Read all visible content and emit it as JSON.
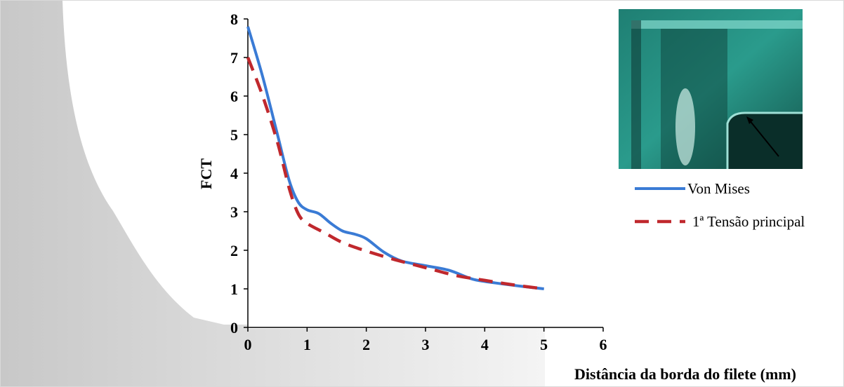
{
  "chart_data": {
    "type": "line",
    "xlabel": "Distância da borda do filete (mm)",
    "ylabel": "FCT",
    "xlim": [
      0,
      6
    ],
    "ylim": [
      0,
      8
    ],
    "x_ticks": [
      "0",
      "1",
      "2",
      "3",
      "4",
      "5",
      "6"
    ],
    "y_ticks": [
      "0",
      "1",
      "2",
      "3",
      "4",
      "5",
      "6",
      "7",
      "8"
    ],
    "grid": false,
    "legend_position": "right",
    "series": [
      {
        "name": "Von Mises",
        "color": "#3a7bd5",
        "style": "solid",
        "x": [
          0,
          0.25,
          0.5,
          0.7,
          0.85,
          1.0,
          1.2,
          1.4,
          1.6,
          1.8,
          2.0,
          2.3,
          2.6,
          3.0,
          3.4,
          3.8,
          4.2,
          4.6,
          5.0
        ],
        "y": [
          7.8,
          6.5,
          5.0,
          3.8,
          3.25,
          3.05,
          2.95,
          2.7,
          2.5,
          2.42,
          2.3,
          1.95,
          1.72,
          1.6,
          1.48,
          1.25,
          1.15,
          1.07,
          1.0
        ]
      },
      {
        "name": "1ª Tensão principal",
        "color": "#c0282d",
        "style": "dashed",
        "x": [
          0,
          0.25,
          0.5,
          0.7,
          0.85,
          1.0,
          1.3,
          1.6,
          2.0,
          2.5,
          3.0,
          3.5,
          4.0,
          4.5,
          5.0
        ],
        "y": [
          7.0,
          6.0,
          4.8,
          3.6,
          2.95,
          2.7,
          2.45,
          2.2,
          1.98,
          1.75,
          1.55,
          1.35,
          1.22,
          1.1,
          1.0
        ]
      }
    ]
  }
}
